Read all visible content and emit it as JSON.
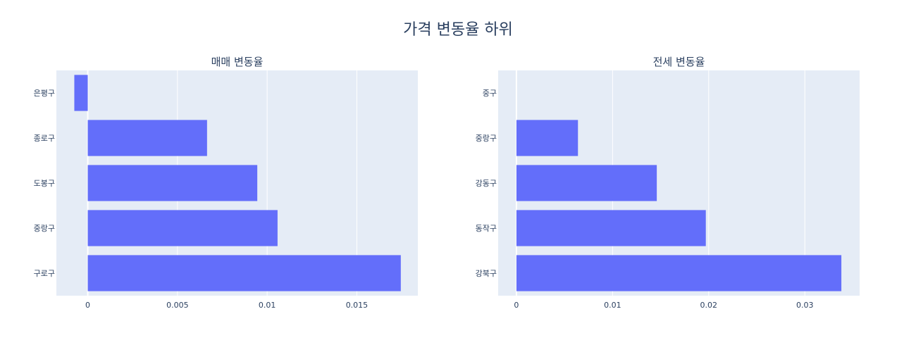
{
  "title": "가격 변동율 하위",
  "colors": {
    "bar": "#636efa",
    "plot_bg": "#e5ecf6",
    "grid": "#ffffff",
    "text": "#2a3f5f"
  },
  "chart_data": [
    {
      "type": "bar",
      "orientation": "horizontal",
      "title": "매매 변동율",
      "categories": [
        "은평구",
        "종로구",
        "도봉구",
        "중랑구",
        "구로구"
      ],
      "values": [
        -0.00075,
        0.00665,
        0.00945,
        0.01058,
        0.01745
      ],
      "xlim": [
        -0.00175,
        0.0184
      ],
      "xticks": [
        0,
        0.005,
        0.01,
        0.015
      ],
      "xtick_labels": [
        "0",
        "0.005",
        "0.01",
        "0.015"
      ],
      "grid": true
    },
    {
      "type": "bar",
      "orientation": "horizontal",
      "title": "전세 변동율",
      "categories": [
        "중구",
        "중랑구",
        "강동구",
        "동작구",
        "강북구"
      ],
      "values": [
        0,
        0.0064,
        0.0146,
        0.0197,
        0.0338
      ],
      "xlim": [
        -0.0019,
        0.0357
      ],
      "xticks": [
        0,
        0.01,
        0.02,
        0.03
      ],
      "xtick_labels": [
        "0",
        "0.01",
        "0.02",
        "0.03"
      ],
      "grid": true
    }
  ]
}
